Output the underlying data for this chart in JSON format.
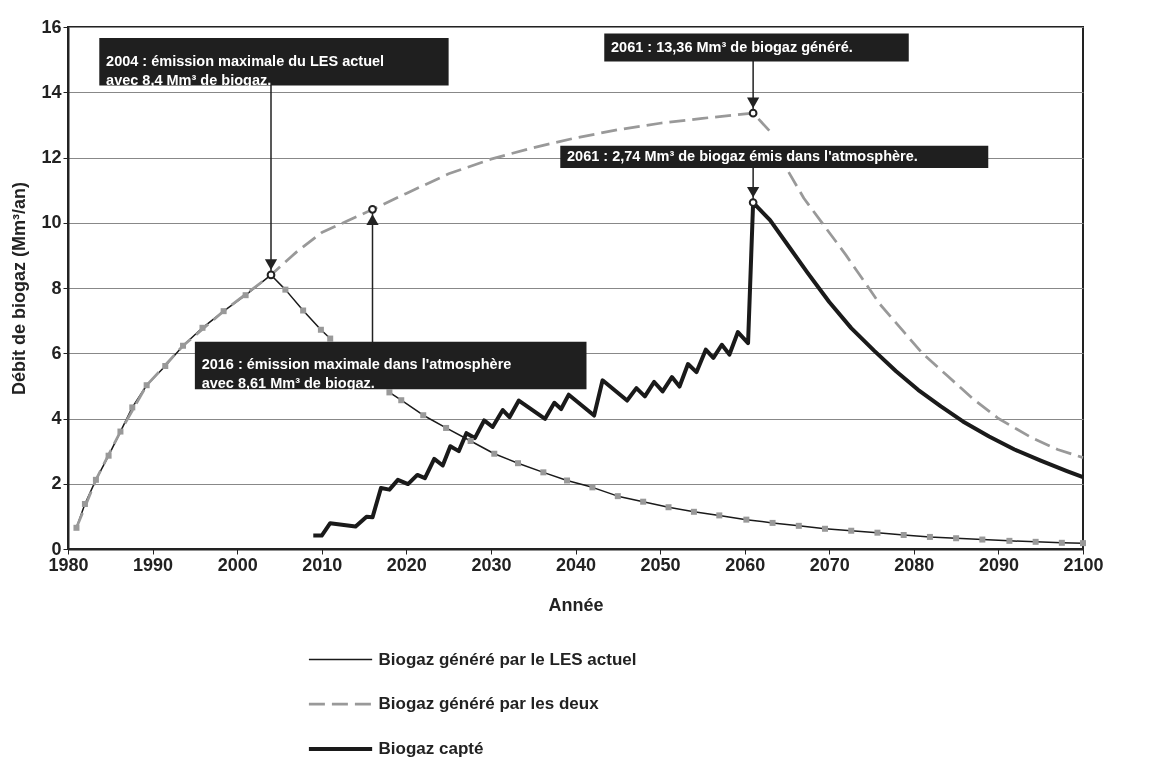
{
  "chart_data": {
    "type": "line",
    "xlabel": "Année",
    "ylabel": "Débit de biogaz (Mm³/an)",
    "xlim": [
      1980,
      2100
    ],
    "xticks": [
      1980,
      1990,
      2000,
      2010,
      2020,
      2030,
      2040,
      2050,
      2060,
      2070,
      2080,
      2090,
      2100
    ],
    "ylim": [
      0,
      16
    ],
    "yticks": [
      0,
      2,
      4,
      6,
      8,
      10,
      12,
      14,
      16
    ],
    "grid": "y",
    "legend": "bottom",
    "series": [
      {
        "name": "Biogaz généré par le LES actuel",
        "color": "#1a1a1a",
        "marker": "square",
        "line_style": "solid",
        "x": [
          1981,
          1982,
          1983.3,
          1984.8,
          1986.2,
          1987.6,
          1989.3,
          1991.5,
          1993.6,
          1995.9,
          1998.4,
          2001,
          2004,
          2005.7,
          2007.8,
          2009.9,
          2011,
          2014.5,
          2018,
          2019.4,
          2022,
          2024.7,
          2027.6,
          2030.4,
          2033.2,
          2036.2,
          2039,
          2042,
          2045,
          2048,
          2051,
          2054,
          2057,
          2060.2,
          2063.3,
          2066.4,
          2069.5,
          2072.6,
          2075.7,
          2078.8,
          2081.9,
          2085,
          2088.1,
          2091.3,
          2094.4,
          2097.5,
          2100
        ],
        "values": [
          0.65,
          1.38,
          2.12,
          2.86,
          3.6,
          4.34,
          5.02,
          5.61,
          6.23,
          6.78,
          7.29,
          7.78,
          8.4,
          7.95,
          7.31,
          6.72,
          6.45,
          null,
          4.8,
          4.56,
          4.1,
          3.71,
          3.31,
          2.92,
          2.63,
          2.35,
          2.1,
          1.89,
          1.62,
          1.45,
          1.28,
          1.14,
          1.03,
          0.9,
          0.8,
          0.71,
          0.62,
          0.56,
          0.5,
          0.43,
          0.37,
          0.33,
          0.29,
          0.25,
          0.22,
          0.19,
          0.18
        ]
      },
      {
        "name": "Biogaz généré par les deux",
        "color": "#999999",
        "line_style": "dashed",
        "x": [
          1981,
          1983.3,
          1986.2,
          1989.3,
          1993.6,
          1998.4,
          2004,
          2007,
          2010,
          2013,
          2016,
          2020,
          2025,
          2030,
          2035,
          2040,
          2045,
          2050,
          2055,
          2061,
          2063,
          2064,
          2065.2,
          2067,
          2069,
          2072,
          2074,
          2076,
          2079,
          2081,
          2084,
          2087,
          2090,
          2094,
          2097,
          2100
        ],
        "values": [
          0.65,
          2.12,
          3.6,
          5.02,
          6.23,
          7.29,
          8.4,
          9.1,
          9.7,
          10.05,
          10.41,
          10.9,
          11.5,
          11.95,
          12.3,
          12.6,
          12.85,
          13.05,
          13.2,
          13.36,
          12.8,
          null,
          11.55,
          10.75,
          10.05,
          9.0,
          8.25,
          7.5,
          6.6,
          6.0,
          5.3,
          4.6,
          4.0,
          3.4,
          3.05,
          2.8
        ]
      },
      {
        "name": "Biogaz capté",
        "color": "#1a1a1a",
        "line_style": "solid",
        "x": [
          2009,
          2010,
          2011,
          2014,
          2015.3,
          2016,
          2017,
          2018,
          2019,
          2020.2,
          2021.3,
          2022.2,
          2023.3,
          2024.3,
          2025.2,
          2026.2,
          2027.1,
          2028.1,
          2029.2,
          2030.2,
          2031.4,
          2032.2,
          2033.3,
          2036.4,
          2037.5,
          2038.3,
          2039.2,
          2042.2,
          2043.2,
          2046.1,
          2047.2,
          2048.2,
          2049.3,
          2050.3,
          2051.4,
          2052.3,
          2053.3,
          2054.3,
          2055.4,
          2056.3,
          2057.3,
          2058.2,
          2059.2,
          2060.4,
          2061,
          2063,
          2065.2,
          2067.4,
          2070,
          2072.6,
          2075.3,
          2077.9,
          2080.5,
          2083.2,
          2085.8,
          2088.9,
          2091.9,
          2095,
          2098.1,
          2100
        ],
        "values": [
          0.41,
          0.41,
          0.79,
          0.69,
          0.99,
          0.97,
          1.87,
          1.82,
          2.12,
          1.99,
          2.27,
          2.17,
          2.76,
          2.56,
          3.15,
          3.0,
          3.55,
          3.4,
          3.94,
          3.74,
          4.26,
          4.04,
          4.55,
          3.99,
          4.48,
          4.29,
          4.73,
          4.09,
          5.17,
          4.55,
          4.93,
          4.68,
          5.12,
          4.83,
          5.27,
          4.98,
          5.67,
          5.42,
          6.11,
          5.86,
          6.26,
          5.96,
          6.65,
          6.31,
          10.62,
          10.08,
          9.28,
          8.48,
          7.57,
          6.77,
          6.08,
          5.45,
          4.88,
          4.37,
          3.91,
          3.45,
          3.05,
          2.71,
          2.39,
          2.2
        ]
      }
    ],
    "annotations": [
      {
        "text": "2004 :  émission maximale du LES actuel\navec 8,4 Mm³ de biogaz.",
        "x": 2004,
        "y": 8.4
      },
      {
        "text": "2016 :  émission maximale dans l'atmosphère\navec 8,61 Mm³ de biogaz.",
        "x": 2016,
        "y": 10.41
      },
      {
        "text": "2061 :  13,36 Mm³ de biogaz généré.",
        "x": 2061,
        "y": 13.36
      },
      {
        "text": "2061 :  2,74 Mm³ de biogaz émis dans l'atmosphère.",
        "x": 2061,
        "y": 10.62
      }
    ]
  }
}
